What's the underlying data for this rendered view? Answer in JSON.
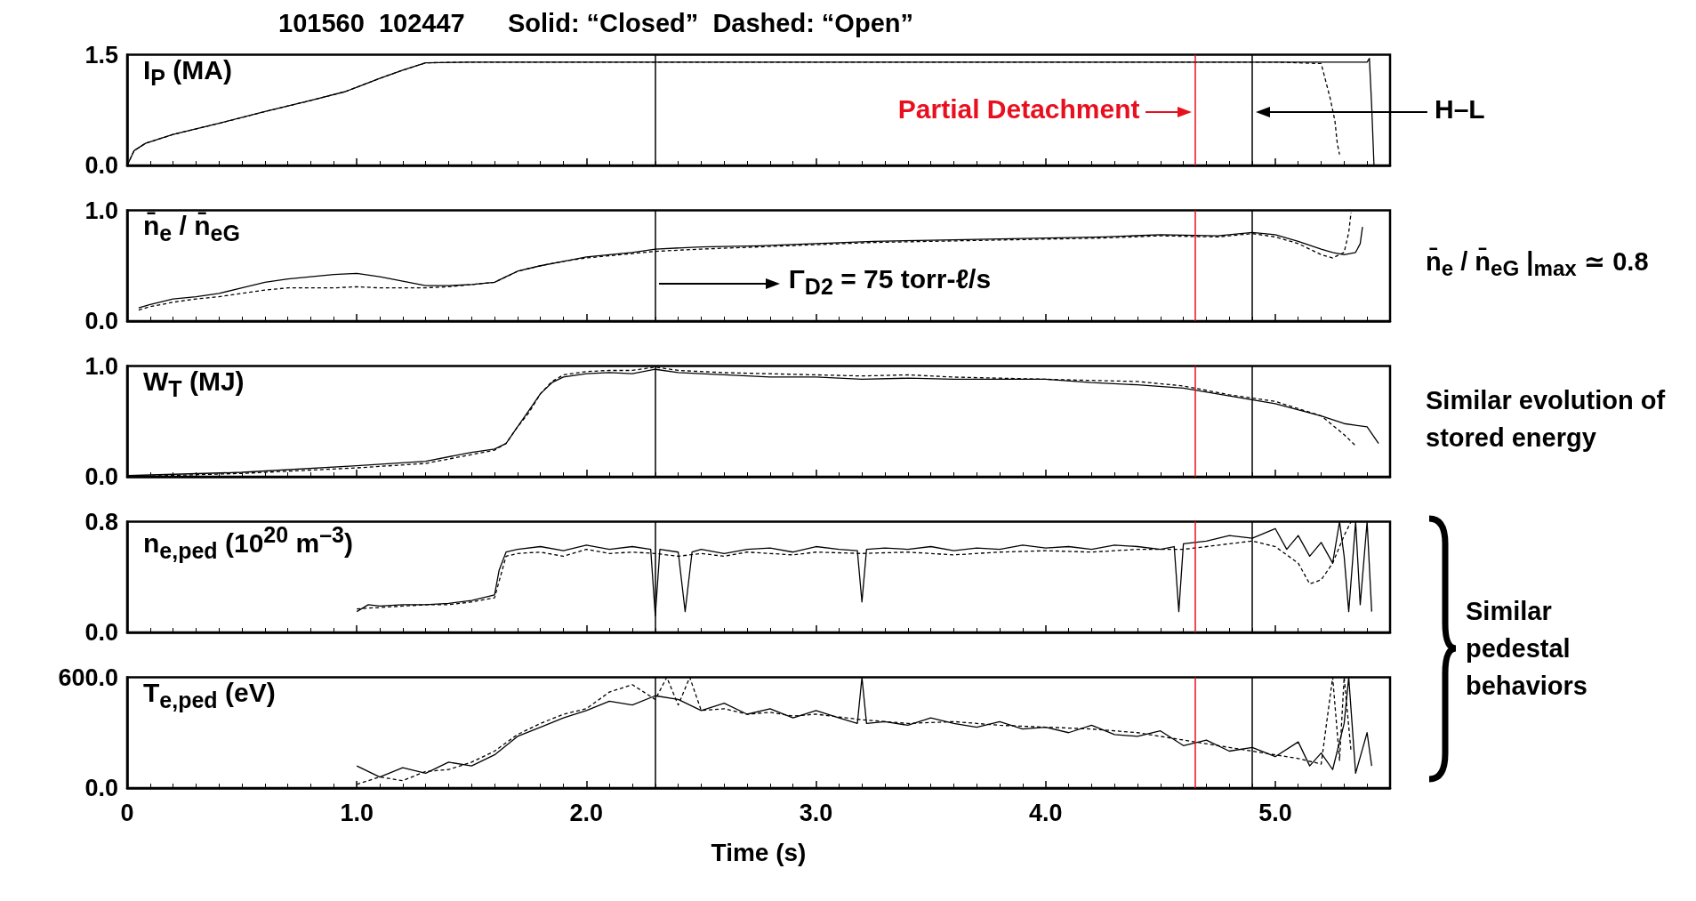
{
  "chart_data": [
    {
      "type": "line",
      "title": "101560  102447      Solid: “Closed”  Dashed: “Open”",
      "ylabel": "I$_{P}$ (MA)",
      "xlim": [
        0,
        5.5
      ],
      "xticks": [
        {
          "value": 0,
          "label": null
        },
        {
          "value": 1,
          "label": null
        },
        {
          "value": 2,
          "label": null
        },
        {
          "value": 3,
          "label": null
        },
        {
          "value": 4,
          "label": null
        },
        {
          "value": 5,
          "label": null
        }
      ],
      "ylim": [
        0,
        1.5
      ],
      "yticks": [
        {
          "value": 0,
          "label": "0.0"
        },
        {
          "value": 1.5,
          "label": "1.5"
        }
      ],
      "tick_labels": "y",
      "grid": false,
      "ref_lines": [
        {
          "axis": "x",
          "value": 2.3,
          "color": "#000000"
        },
        {
          "axis": "x",
          "value": 4.65,
          "label": "Partial Detachment",
          "color": "#e8101f"
        },
        {
          "axis": "x",
          "value": 4.9,
          "label": "H–L",
          "color": "#000000"
        }
      ],
      "series": [
        {
          "color": "#000000",
          "line_style": "solid",
          "x": [
            0,
            0.03,
            0.08,
            0.2,
            0.4,
            0.6,
            0.8,
            0.95,
            1.0,
            1.1,
            1.2,
            1.3,
            1.5,
            2,
            2.5,
            3,
            3.5,
            4,
            4.5,
            5,
            5.3,
            5.4,
            5.41,
            5.42,
            5.43
          ],
          "values": [
            0,
            0.2,
            0.3,
            0.42,
            0.57,
            0.73,
            0.88,
            1.0,
            1.06,
            1.18,
            1.29,
            1.39,
            1.4,
            1.4,
            1.4,
            1.4,
            1.4,
            1.4,
            1.4,
            1.4,
            1.4,
            1.4,
            1.45,
            0.8,
            0
          ]
        },
        {
          "color": "#000000",
          "line_style": "dashed",
          "x": [
            0,
            0.03,
            0.08,
            0.2,
            0.4,
            0.6,
            0.8,
            0.95,
            1.0,
            1.1,
            1.2,
            1.3,
            1.5,
            2,
            2.5,
            3,
            3.5,
            4,
            4.5,
            5,
            5.2,
            5.24,
            5.26,
            5.27,
            5.28
          ],
          "values": [
            0,
            0.2,
            0.3,
            0.42,
            0.57,
            0.73,
            0.88,
            1.0,
            1.06,
            1.18,
            1.29,
            1.39,
            1.4,
            1.4,
            1.4,
            1.4,
            1.4,
            1.4,
            1.4,
            1.4,
            1.38,
            0.9,
            0.6,
            0.3,
            0.15
          ]
        }
      ]
    },
    {
      "type": "line",
      "ylabel": "n̄$_{e}$ / n̄$_{eG}$",
      "xlim": [
        0,
        5.5
      ],
      "xticks": [
        {
          "value": 0,
          "label": null
        },
        {
          "value": 1,
          "label": null
        },
        {
          "value": 2,
          "label": null
        },
        {
          "value": 3,
          "label": null
        },
        {
          "value": 4,
          "label": null
        },
        {
          "value": 5,
          "label": null
        }
      ],
      "ylim": [
        0,
        1
      ],
      "yticks": [
        {
          "value": 0,
          "label": "0.0"
        },
        {
          "value": 1,
          "label": "1.0"
        }
      ],
      "tick_labels": "y",
      "grid": false,
      "annotations": [
        "Γ$_{D2}$ = 75 torr-ℓ/s",
        "n̄$_{e}$ / n̄$_{eG}$ |$_{max}$ ≃ 0.8"
      ],
      "ref_lines": [
        {
          "axis": "x",
          "value": 2.3,
          "color": "#000000"
        },
        {
          "axis": "x",
          "value": 4.65,
          "color": "#e8101f"
        },
        {
          "axis": "x",
          "value": 4.9,
          "color": "#000000"
        }
      ],
      "series": [
        {
          "color": "#000000",
          "line_style": "solid",
          "x": [
            0.05,
            0.1,
            0.2,
            0.3,
            0.4,
            0.5,
            0.6,
            0.7,
            0.8,
            0.9,
            1.0,
            1.1,
            1.2,
            1.3,
            1.4,
            1.5,
            1.6,
            1.65,
            1.7,
            1.8,
            1.9,
            2.0,
            2.1,
            2.2,
            2.3,
            2.5,
            2.75,
            3.0,
            3.25,
            3.5,
            3.75,
            4.0,
            4.25,
            4.5,
            4.75,
            4.9,
            5.0,
            5.1,
            5.2,
            5.25,
            5.3,
            5.35,
            5.37,
            5.38
          ],
          "values": [
            0.12,
            0.15,
            0.2,
            0.22,
            0.25,
            0.3,
            0.35,
            0.38,
            0.4,
            0.42,
            0.43,
            0.4,
            0.36,
            0.32,
            0.32,
            0.33,
            0.35,
            0.4,
            0.45,
            0.5,
            0.54,
            0.58,
            0.6,
            0.62,
            0.65,
            0.67,
            0.68,
            0.7,
            0.72,
            0.73,
            0.74,
            0.75,
            0.76,
            0.78,
            0.77,
            0.8,
            0.78,
            0.72,
            0.65,
            0.62,
            0.6,
            0.62,
            0.7,
            0.85
          ]
        },
        {
          "color": "#000000",
          "line_style": "dashed",
          "x": [
            0.05,
            0.1,
            0.2,
            0.3,
            0.4,
            0.5,
            0.6,
            0.7,
            0.8,
            0.9,
            1.0,
            1.1,
            1.2,
            1.3,
            1.4,
            1.5,
            1.6,
            1.65,
            1.7,
            1.8,
            1.9,
            2.0,
            2.1,
            2.2,
            2.3,
            2.5,
            2.75,
            3.0,
            3.25,
            3.5,
            3.75,
            4.0,
            4.25,
            4.5,
            4.75,
            4.9,
            5.0,
            5.1,
            5.2,
            5.25,
            5.3,
            5.32,
            5.33
          ],
          "values": [
            0.1,
            0.13,
            0.17,
            0.2,
            0.22,
            0.25,
            0.28,
            0.3,
            0.3,
            0.3,
            0.31,
            0.3,
            0.3,
            0.3,
            0.31,
            0.33,
            0.35,
            0.4,
            0.45,
            0.5,
            0.54,
            0.57,
            0.59,
            0.61,
            0.63,
            0.65,
            0.67,
            0.69,
            0.71,
            0.72,
            0.73,
            0.74,
            0.75,
            0.77,
            0.76,
            0.79,
            0.76,
            0.7,
            0.6,
            0.57,
            0.62,
            0.8,
            0.98
          ]
        }
      ]
    },
    {
      "type": "line",
      "ylabel": "W$_{T}$ (MJ)",
      "xlim": [
        0,
        5.5
      ],
      "xticks": [
        {
          "value": 0,
          "label": null
        },
        {
          "value": 1,
          "label": null
        },
        {
          "value": 2,
          "label": null
        },
        {
          "value": 3,
          "label": null
        },
        {
          "value": 4,
          "label": null
        },
        {
          "value": 5,
          "label": null
        }
      ],
      "ylim": [
        0,
        1
      ],
      "yticks": [
        {
          "value": 0,
          "label": "0.0"
        },
        {
          "value": 1,
          "label": "1.0"
        }
      ],
      "tick_labels": "y",
      "grid": false,
      "annotations": [
        "Similar evolution of stored energy"
      ],
      "ref_lines": [
        {
          "axis": "x",
          "value": 2.3,
          "color": "#000000"
        },
        {
          "axis": "x",
          "value": 4.65,
          "color": "#e8101f"
        },
        {
          "axis": "x",
          "value": 4.9,
          "color": "#000000"
        }
      ],
      "series": [
        {
          "color": "#000000",
          "line_style": "solid",
          "x": [
            0,
            0.5,
            1.0,
            1.3,
            1.5,
            1.6,
            1.65,
            1.7,
            1.75,
            1.8,
            1.85,
            1.9,
            2.0,
            2.1,
            2.2,
            2.3,
            2.4,
            2.6,
            2.8,
            3.0,
            3.2,
            3.4,
            3.6,
            3.8,
            4.0,
            4.2,
            4.4,
            4.6,
            4.8,
            5.0,
            5.2,
            5.3,
            5.4,
            5.45
          ],
          "values": [
            0.01,
            0.04,
            0.1,
            0.14,
            0.22,
            0.25,
            0.3,
            0.45,
            0.6,
            0.75,
            0.85,
            0.9,
            0.93,
            0.94,
            0.93,
            0.97,
            0.94,
            0.92,
            0.9,
            0.9,
            0.88,
            0.89,
            0.88,
            0.88,
            0.88,
            0.85,
            0.83,
            0.8,
            0.73,
            0.66,
            0.55,
            0.48,
            0.45,
            0.3
          ]
        },
        {
          "color": "#000000",
          "line_style": "dashed",
          "x": [
            0,
            0.5,
            1.0,
            1.3,
            1.5,
            1.6,
            1.65,
            1.7,
            1.75,
            1.8,
            1.85,
            1.9,
            2.0,
            2.1,
            2.2,
            2.3,
            2.4,
            2.6,
            2.8,
            3.0,
            3.2,
            3.4,
            3.6,
            3.8,
            4.0,
            4.2,
            4.4,
            4.6,
            4.8,
            5.0,
            5.2,
            5.3,
            5.35
          ],
          "values": [
            0,
            0.03,
            0.08,
            0.12,
            0.2,
            0.24,
            0.3,
            0.45,
            0.58,
            0.75,
            0.86,
            0.92,
            0.95,
            0.96,
            0.96,
            0.99,
            0.96,
            0.94,
            0.93,
            0.92,
            0.91,
            0.92,
            0.9,
            0.89,
            0.88,
            0.87,
            0.86,
            0.82,
            0.74,
            0.68,
            0.55,
            0.38,
            0.28
          ]
        }
      ]
    },
    {
      "type": "line",
      "ylabel": "n$_{e,ped}$ (10$^{20}$ m$^{–3}$)",
      "xlim": [
        0,
        5.5
      ],
      "xticks": [
        {
          "value": 0,
          "label": null
        },
        {
          "value": 1,
          "label": null
        },
        {
          "value": 2,
          "label": null
        },
        {
          "value": 3,
          "label": null
        },
        {
          "value": 4,
          "label": null
        },
        {
          "value": 5,
          "label": null
        }
      ],
      "ylim": [
        0,
        0.8
      ],
      "yticks": [
        {
          "value": 0,
          "label": "0.0"
        },
        {
          "value": 0.8,
          "label": "0.8"
        }
      ],
      "tick_labels": "y",
      "grid": false,
      "annotations": [
        "Similar pedestal behaviors"
      ],
      "ref_lines": [
        {
          "axis": "x",
          "value": 2.3,
          "color": "#000000"
        },
        {
          "axis": "x",
          "value": 4.65,
          "color": "#e8101f"
        },
        {
          "axis": "x",
          "value": 4.9,
          "color": "#000000"
        }
      ],
      "series": [
        {
          "color": "#000000",
          "line_style": "solid",
          "x": [
            1.0,
            1.05,
            1.1,
            1.2,
            1.3,
            1.4,
            1.5,
            1.6,
            1.62,
            1.65,
            1.7,
            1.8,
            1.9,
            2.0,
            2.1,
            2.2,
            2.28,
            2.3,
            2.32,
            2.4,
            2.43,
            2.46,
            2.5,
            2.6,
            2.7,
            2.8,
            2.9,
            3.0,
            3.1,
            3.18,
            3.2,
            3.22,
            3.3,
            3.4,
            3.5,
            3.6,
            3.7,
            3.8,
            3.9,
            4.0,
            4.1,
            4.2,
            4.3,
            4.4,
            4.5,
            4.56,
            4.58,
            4.6,
            4.7,
            4.8,
            4.9,
            5.0,
            5.05,
            5.1,
            5.15,
            5.2,
            5.25,
            5.28,
            5.3,
            5.32,
            5.35,
            5.37,
            5.4,
            5.42
          ],
          "values": [
            0.15,
            0.2,
            0.19,
            0.2,
            0.2,
            0.21,
            0.23,
            0.27,
            0.45,
            0.58,
            0.6,
            0.62,
            0.59,
            0.63,
            0.6,
            0.62,
            0.6,
            0.12,
            0.6,
            0.58,
            0.15,
            0.58,
            0.6,
            0.57,
            0.6,
            0.61,
            0.58,
            0.62,
            0.6,
            0.59,
            0.22,
            0.6,
            0.61,
            0.6,
            0.62,
            0.59,
            0.61,
            0.6,
            0.63,
            0.61,
            0.62,
            0.6,
            0.63,
            0.62,
            0.6,
            0.62,
            0.15,
            0.64,
            0.66,
            0.7,
            0.68,
            0.75,
            0.6,
            0.7,
            0.55,
            0.65,
            0.5,
            0.8,
            0.55,
            0.15,
            0.8,
            0.2,
            0.8,
            0.15
          ]
        },
        {
          "color": "#000000",
          "line_style": "dashed",
          "x": [
            1.0,
            1.1,
            1.2,
            1.3,
            1.4,
            1.5,
            1.6,
            1.65,
            1.7,
            1.8,
            1.9,
            2.0,
            2.1,
            2.2,
            2.3,
            2.4,
            2.5,
            2.6,
            2.7,
            2.8,
            2.9,
            3.0,
            3.2,
            3.4,
            3.6,
            3.8,
            4.0,
            4.2,
            4.4,
            4.6,
            4.8,
            4.9,
            5.0,
            5.1,
            5.15,
            5.2,
            5.25,
            5.3,
            5.33
          ],
          "values": [
            0.17,
            0.18,
            0.19,
            0.2,
            0.2,
            0.22,
            0.25,
            0.55,
            0.57,
            0.58,
            0.55,
            0.6,
            0.57,
            0.58,
            0.57,
            0.55,
            0.57,
            0.55,
            0.58,
            0.57,
            0.56,
            0.58,
            0.57,
            0.58,
            0.56,
            0.58,
            0.59,
            0.58,
            0.6,
            0.6,
            0.64,
            0.66,
            0.62,
            0.5,
            0.35,
            0.38,
            0.5,
            0.7,
            0.8
          ]
        }
      ]
    },
    {
      "type": "line",
      "ylabel": "T$_{e,ped}$ (eV)",
      "xlabel": "Time (s)",
      "xlim": [
        0,
        5.5
      ],
      "xticks": [
        {
          "value": 0,
          "label": "0"
        },
        {
          "value": 1,
          "label": "1.0"
        },
        {
          "value": 2,
          "label": "2.0"
        },
        {
          "value": 3,
          "label": "3.0"
        },
        {
          "value": 4,
          "label": "4.0"
        },
        {
          "value": 5,
          "label": "5.0"
        }
      ],
      "ylim": [
        0,
        600
      ],
      "yticks": [
        {
          "value": 0,
          "label": "0.0"
        },
        {
          "value": 600,
          "label": "600.0"
        }
      ],
      "grid": false,
      "ref_lines": [
        {
          "axis": "x",
          "value": 2.3,
          "color": "#000000"
        },
        {
          "axis": "x",
          "value": 4.65,
          "color": "#e8101f"
        },
        {
          "axis": "x",
          "value": 4.9,
          "color": "#000000"
        }
      ],
      "series": [
        {
          "color": "#000000",
          "line_style": "solid",
          "x": [
            1.0,
            1.1,
            1.2,
            1.3,
            1.4,
            1.5,
            1.6,
            1.7,
            1.8,
            1.9,
            2.0,
            2.1,
            2.2,
            2.3,
            2.4,
            2.5,
            2.6,
            2.7,
            2.8,
            2.9,
            3.0,
            3.1,
            3.18,
            3.2,
            3.22,
            3.3,
            3.4,
            3.5,
            3.6,
            3.7,
            3.8,
            3.9,
            4.0,
            4.1,
            4.2,
            4.3,
            4.4,
            4.5,
            4.6,
            4.7,
            4.8,
            4.9,
            5.0,
            5.1,
            5.15,
            5.2,
            5.25,
            5.3,
            5.32,
            5.35,
            5.4,
            5.42
          ],
          "values": [
            120,
            60,
            110,
            80,
            140,
            120,
            180,
            280,
            330,
            380,
            420,
            470,
            450,
            500,
            480,
            420,
            460,
            400,
            430,
            380,
            420,
            380,
            350,
            600,
            350,
            360,
            340,
            380,
            350,
            330,
            360,
            320,
            330,
            300,
            340,
            290,
            280,
            310,
            230,
            260,
            200,
            220,
            170,
            250,
            120,
            190,
            100,
            350,
            600,
            80,
            300,
            120
          ]
        },
        {
          "color": "#000000",
          "line_style": "dashed",
          "x": [
            1.0,
            1.1,
            1.2,
            1.3,
            1.4,
            1.5,
            1.6,
            1.7,
            1.8,
            1.9,
            2.0,
            2.1,
            2.2,
            2.3,
            2.35,
            2.4,
            2.45,
            2.5,
            2.6,
            2.7,
            2.8,
            2.9,
            3.0,
            3.2,
            3.4,
            3.6,
            3.8,
            4.0,
            4.2,
            4.4,
            4.6,
            4.8,
            5.0,
            5.1,
            5.2,
            5.25,
            5.28,
            5.3,
            5.33
          ],
          "values": [
            20,
            60,
            40,
            90,
            100,
            140,
            200,
            290,
            350,
            400,
            430,
            520,
            560,
            480,
            600,
            450,
            600,
            420,
            430,
            400,
            410,
            390,
            400,
            370,
            350,
            360,
            340,
            330,
            320,
            300,
            260,
            220,
            180,
            160,
            130,
            600,
            150,
            600,
            200
          ]
        }
      ]
    }
  ]
}
